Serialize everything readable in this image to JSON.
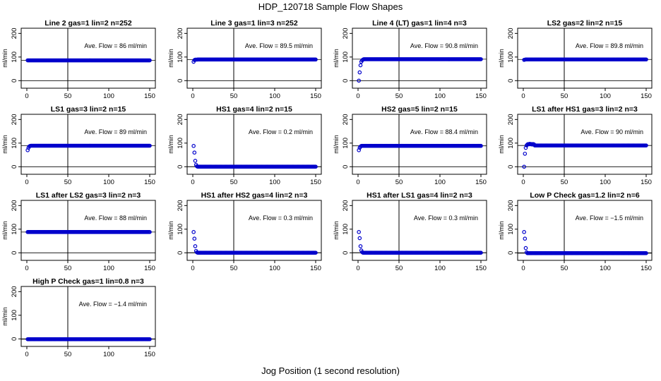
{
  "figure": {
    "title": "HDP_120718  Sample Flow Shapes",
    "xlabel": "Jog Position (1 second resolution)"
  },
  "chart_data": [
    {
      "type": "scatter",
      "title": "Line 2 gas=1 lin=2 n=252",
      "annotation": "Ave. Flow =  86  ml/min",
      "ylabel": "ml/min",
      "xlim": [
        0,
        150
      ],
      "ylim": [
        -20,
        210
      ],
      "xticks": [
        0,
        50,
        100,
        150
      ],
      "yticks": [
        0,
        100,
        200
      ],
      "vline": 50,
      "hline": 0,
      "start": [
        86,
        86,
        86,
        86,
        86
      ],
      "steady": 86
    },
    {
      "type": "scatter",
      "title": "Line 3 gas=1 lin=3 n=252",
      "annotation": "Ave. Flow =  89.5  ml/min",
      "ylabel": "ml/min",
      "xlim": [
        0,
        150
      ],
      "ylim": [
        -20,
        210
      ],
      "xticks": [
        0,
        50,
        100,
        150
      ],
      "yticks": [
        0,
        100,
        200
      ],
      "vline": 50,
      "hline": 0,
      "start": [
        80,
        87,
        89,
        89,
        89
      ],
      "steady": 89.5
    },
    {
      "type": "scatter",
      "title": "Line 4 (LT) gas=1 lin=4 n=3",
      "annotation": "Ave. Flow =  90.8  ml/min",
      "ylabel": "ml/min",
      "xlim": [
        0,
        150
      ],
      "ylim": [
        -20,
        210
      ],
      "xticks": [
        0,
        50,
        100,
        150
      ],
      "yticks": [
        0,
        100,
        200
      ],
      "vline": 50,
      "hline": 0,
      "start": [
        0,
        35,
        65,
        80,
        86,
        89
      ],
      "steady": 90.8
    },
    {
      "type": "scatter",
      "title": "LS2 gas=2 lin=2 n=15",
      "annotation": "Ave. Flow =  89.8  ml/min",
      "ylabel": "ml/min",
      "xlim": [
        0,
        150
      ],
      "ylim": [
        -20,
        210
      ],
      "xticks": [
        0,
        50,
        100,
        150
      ],
      "yticks": [
        0,
        100,
        200
      ],
      "vline": 50,
      "hline": 0,
      "start": [
        88,
        89,
        89.8,
        89.8
      ],
      "steady": 89.8
    },
    {
      "type": "scatter",
      "title": "LS1 gas=3 lin=2 n=15",
      "annotation": "Ave. Flow =  89  ml/min",
      "ylabel": "ml/min",
      "xlim": [
        0,
        150
      ],
      "ylim": [
        -20,
        210
      ],
      "xticks": [
        0,
        50,
        100,
        150
      ],
      "yticks": [
        0,
        100,
        200
      ],
      "vline": 50,
      "hline": 0,
      "start": [
        70,
        80,
        86,
        88,
        89
      ],
      "steady": 89
    },
    {
      "type": "scatter",
      "title": "HS1 gas=4 lin=2 n=15",
      "annotation": "Ave. Flow =  0.2  ml/min",
      "ylabel": "ml/min",
      "xlim": [
        0,
        150
      ],
      "ylim": [
        -20,
        210
      ],
      "xticks": [
        0,
        50,
        100,
        150
      ],
      "yticks": [
        0,
        100,
        200
      ],
      "vline": 50,
      "hline": 0,
      "start": [
        88,
        60,
        25,
        8,
        2
      ],
      "steady": 0.2
    },
    {
      "type": "scatter",
      "title": "HS2 gas=5 lin=2 n=15",
      "annotation": "Ave. Flow =  88.4  ml/min",
      "ylabel": "ml/min",
      "xlim": [
        0,
        150
      ],
      "ylim": [
        -20,
        210
      ],
      "xticks": [
        0,
        50,
        100,
        150
      ],
      "yticks": [
        0,
        100,
        200
      ],
      "vline": 50,
      "hline": 0,
      "start": [
        70,
        80,
        85,
        88
      ],
      "steady": 88.4
    },
    {
      "type": "scatter",
      "title": "LS1 after HS1 gas=3 lin=2 n=3",
      "annotation": "Ave. Flow =  90  ml/min",
      "ylabel": "ml/min",
      "xlim": [
        0,
        150
      ],
      "ylim": [
        -20,
        210
      ],
      "xticks": [
        0,
        50,
        100,
        150
      ],
      "yticks": [
        0,
        100,
        200
      ],
      "vline": 50,
      "hline": 0,
      "start": [
        0,
        55,
        80,
        90,
        94,
        96,
        95,
        97,
        95,
        96,
        94,
        96,
        95
      ],
      "steady": 90
    },
    {
      "type": "scatter",
      "title": "LS1 after LS2 gas=3 lin=2 n=3",
      "annotation": "Ave. Flow =  88  ml/min",
      "ylabel": "ml/min",
      "xlim": [
        0,
        150
      ],
      "ylim": [
        -20,
        210
      ],
      "xticks": [
        0,
        50,
        100,
        150
      ],
      "yticks": [
        0,
        100,
        200
      ],
      "vline": 50,
      "hline": 0,
      "start": [
        88,
        88,
        88
      ],
      "steady": 88
    },
    {
      "type": "scatter",
      "title": "HS1 after HS2 gas=4 lin=2 n=3",
      "annotation": "Ave. Flow =  0.3  ml/min",
      "ylabel": "ml/min",
      "xlim": [
        0,
        150
      ],
      "ylim": [
        -20,
        210
      ],
      "xticks": [
        0,
        50,
        100,
        150
      ],
      "yticks": [
        0,
        100,
        200
      ],
      "vline": 50,
      "hline": 0,
      "start": [
        88,
        60,
        28,
        8,
        2
      ],
      "steady": 0.3
    },
    {
      "type": "scatter",
      "title": "HS1 after LS1 gas=4 lin=2 n=3",
      "annotation": "Ave. Flow =  0.3  ml/min",
      "ylabel": "ml/min",
      "xlim": [
        0,
        150
      ],
      "ylim": [
        -20,
        210
      ],
      "xticks": [
        0,
        50,
        100,
        150
      ],
      "yticks": [
        0,
        100,
        200
      ],
      "vline": 50,
      "hline": 0,
      "start": [
        88,
        62,
        28,
        10,
        3
      ],
      "steady": 0.3
    },
    {
      "type": "scatter",
      "title": "Low P Check gas=1.2 lin=2 n=6",
      "annotation": "Ave. Flow =  −1.5  ml/min",
      "ylabel": "ml/min",
      "xlim": [
        0,
        150
      ],
      "ylim": [
        -20,
        210
      ],
      "xticks": [
        0,
        50,
        100,
        150
      ],
      "yticks": [
        0,
        100,
        200
      ],
      "vline": 50,
      "hline": 0,
      "start": [
        88,
        60,
        20,
        2
      ],
      "steady": -1.5
    },
    {
      "type": "scatter",
      "title": "High P Check gas=1 lin=0.8 n=3",
      "annotation": "Ave. Flow =  −1.4  ml/min",
      "ylabel": "ml/min",
      "xlim": [
        0,
        150
      ],
      "ylim": [
        -20,
        210
      ],
      "xticks": [
        0,
        50,
        100,
        150
      ],
      "yticks": [
        0,
        100,
        200
      ],
      "vline": 50,
      "hline": 0,
      "start": [
        -1.4,
        -1.4
      ],
      "steady": -1.4
    }
  ]
}
